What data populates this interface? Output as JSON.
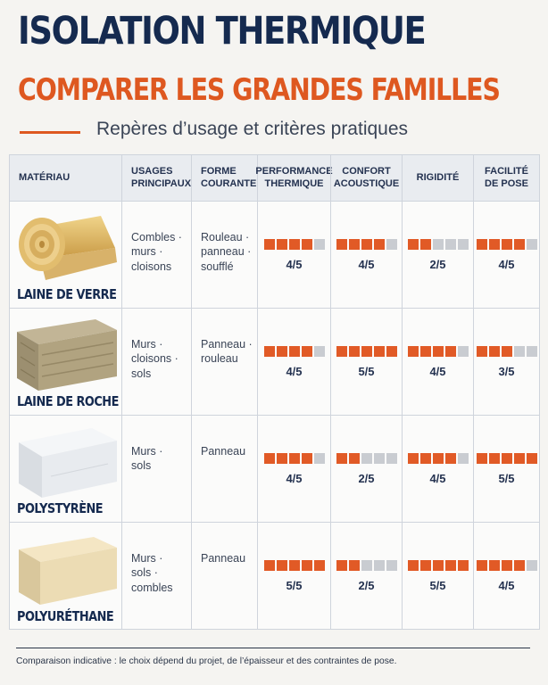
{
  "title": "ISOLATION THERMIQUE",
  "subtitle_main": "COMPARER LES GRANDES FAMILLES",
  "tagline": "Repères d’usage et critères pratiques",
  "headers": [
    "MATÉRIAU",
    "USAGES\nPRINCIPAUX",
    "FORME\nCOURANTE",
    "PERFORMANCE\nTHERMIQUE",
    "CONFORT\nACOUSTIQUE",
    "RIGIDITÉ",
    "FACILITÉ\nDE POSE"
  ],
  "rows": [
    {
      "material": "LAINE DE VERRE",
      "usages": "Combles ·\nmurs ·\ncloisons",
      "forme": "Rouleau ·\npanneau ·\nsoufflé",
      "scores": [
        4,
        4,
        2,
        4
      ],
      "labels": [
        "4/5",
        "4/5",
        "2/5",
        "4/5"
      ]
    },
    {
      "material": "LAINE DE ROCHE",
      "usages": "Murs ·\ncloisons ·\nsols",
      "forme": "Panneau ·\nrouleau",
      "scores": [
        4,
        5,
        4,
        3
      ],
      "labels": [
        "4/5",
        "5/5",
        "4/5",
        "3/5"
      ]
    },
    {
      "material": "POLYSTYRÈNE",
      "usages": "Murs ·\nsols",
      "forme": "Panneau",
      "scores": [
        4,
        2,
        4,
        5
      ],
      "labels": [
        "4/5",
        "2/5",
        "4/5",
        "5/5"
      ]
    },
    {
      "material": "POLYURÉTHANE",
      "usages": "Murs ·\nsols ·\ncombles",
      "forme": "Panneau",
      "scores": [
        5,
        2,
        5,
        4
      ],
      "labels": [
        "5/5",
        "2/5",
        "5/5",
        "4/5"
      ]
    }
  ],
  "score_max": 5,
  "colors": {
    "accent": "#e15a26",
    "navy": "#152a4f",
    "bar_off": "#c9ccd1"
  },
  "footnote": "Comparaison indicative : le choix dépend du projet, de l’épaisseur et des contraintes de pose."
}
